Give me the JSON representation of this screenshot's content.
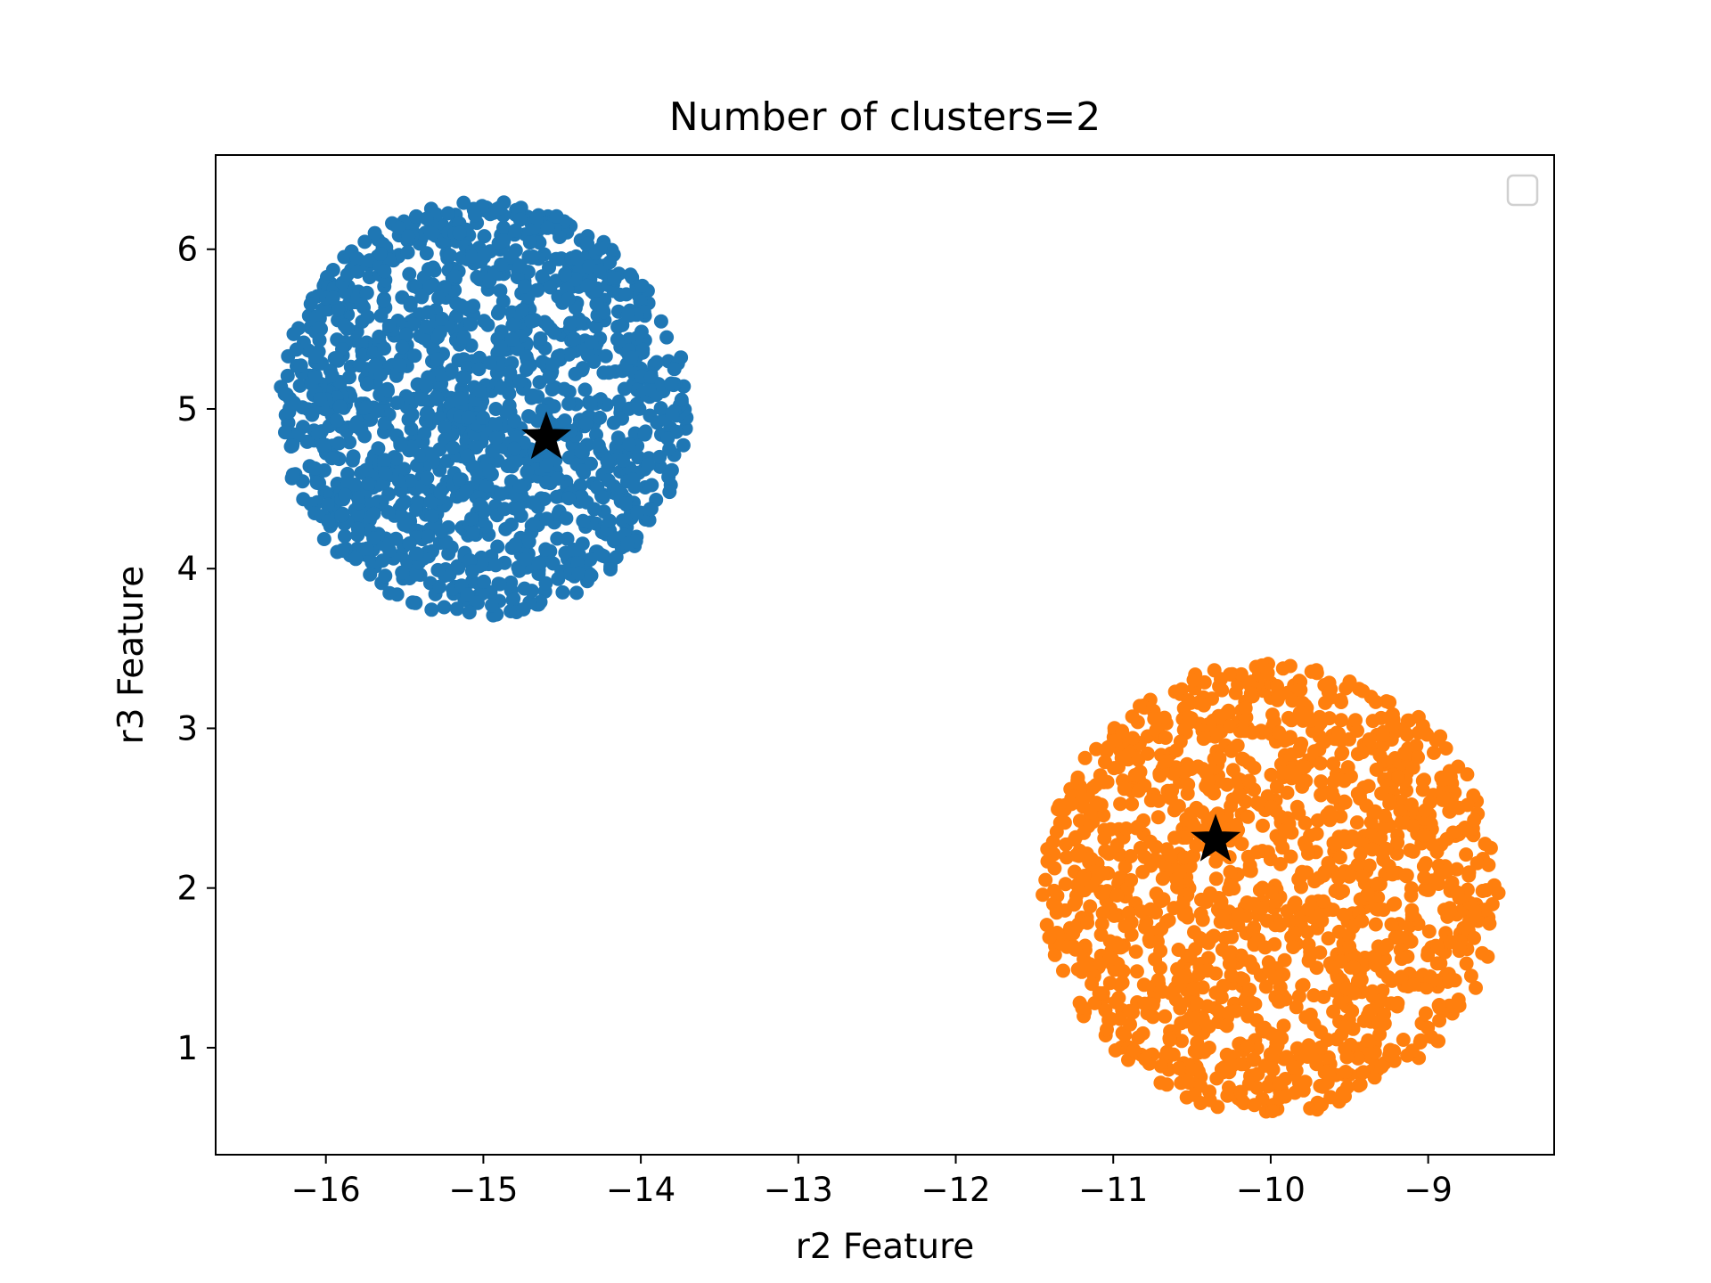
{
  "chart_data": {
    "type": "scatter",
    "title": "Number of clusters=2",
    "xlabel": "r2 Feature",
    "ylabel": "r3 Feature",
    "xlim": [
      -16.7,
      -8.2
    ],
    "ylim": [
      0.33,
      6.59
    ],
    "xticks": [
      -16,
      -15,
      -14,
      -13,
      -12,
      -11,
      -10,
      -9
    ],
    "yticks": [
      1,
      2,
      3,
      4,
      5,
      6
    ],
    "xtick_labels": [
      "−16",
      "−15",
      "−14",
      "−13",
      "−12",
      "−11",
      "−10",
      "−9"
    ],
    "ytick_labels": [
      "1",
      "2",
      "3",
      "4",
      "5",
      "6"
    ],
    "grid": false,
    "legend": {
      "placement": "upper right",
      "entries": []
    },
    "clusters": [
      {
        "color": "#1f77b4",
        "center": [
          -15.0,
          5.0
        ],
        "spread_x": 1.3,
        "spread_y": 1.3,
        "x_range": [
          -16.35,
          -13.65
        ],
        "y_range": [
          3.7,
          6.3
        ]
      },
      {
        "color": "#ff7f0e",
        "center": [
          -10.0,
          2.0
        ],
        "spread_x": 1.45,
        "spread_y": 1.42,
        "x_range": [
          -11.45,
          -8.6
        ],
        "y_range": [
          0.58,
          3.42
        ]
      }
    ],
    "centroids": [
      {
        "x": -14.6,
        "y": 4.82,
        "marker": "star",
        "color": "#000000"
      },
      {
        "x": -10.35,
        "y": 2.3,
        "marker": "star",
        "color": "#000000"
      }
    ]
  }
}
